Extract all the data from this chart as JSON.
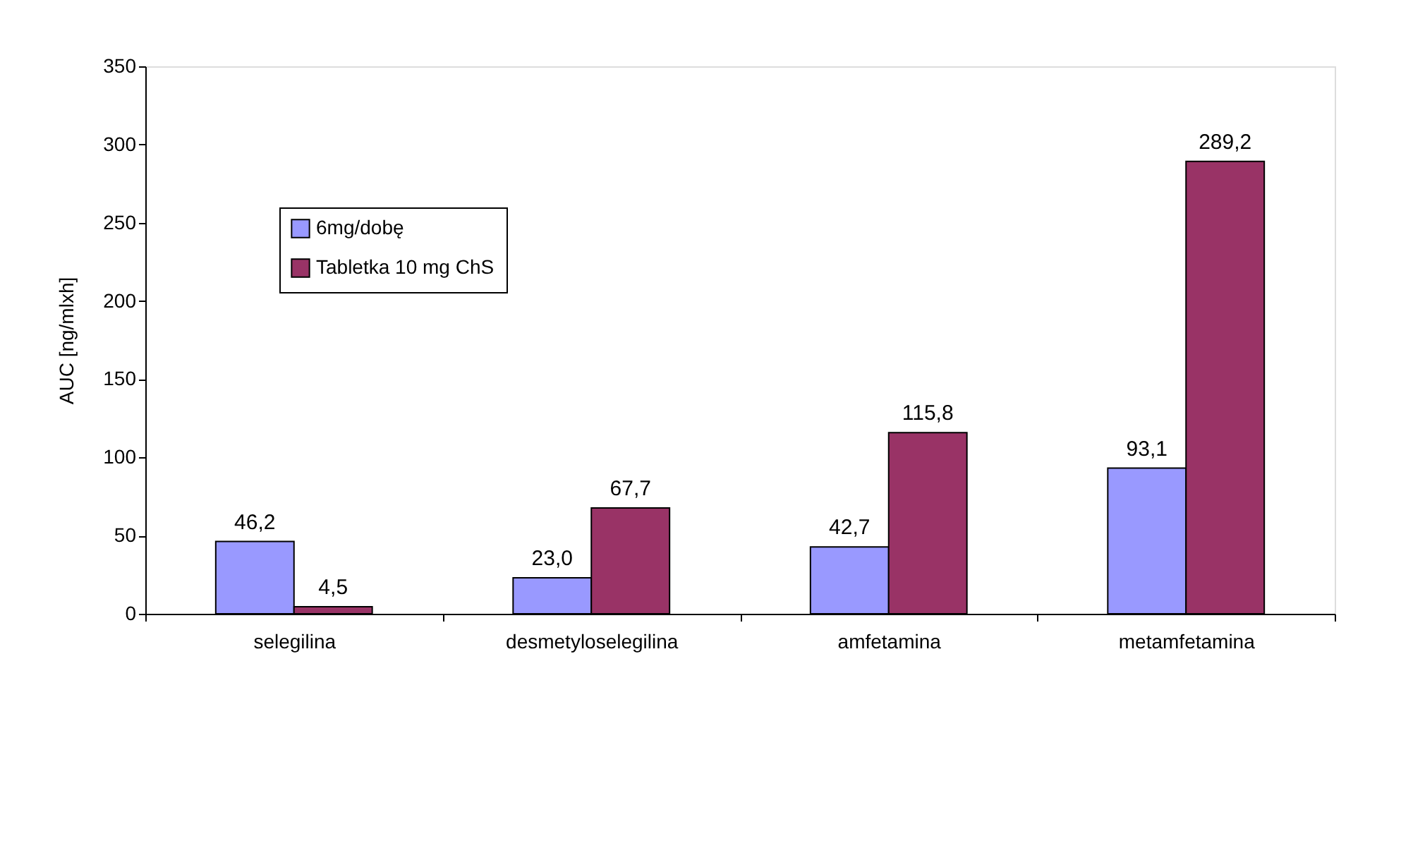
{
  "chart_data": {
    "type": "bar",
    "ylabel": "AUC [ng/mlxh]",
    "categories": [
      "selegilina",
      "desmetyloselegilina",
      "amfetamina",
      "metamfetamina"
    ],
    "series": [
      {
        "name": "6mg/dobę",
        "color": "#9999ff",
        "values": [
          46.2,
          23.0,
          42.7,
          93.1
        ],
        "value_labels": [
          "46,2",
          "23,0",
          "42,7",
          "93,1"
        ]
      },
      {
        "name": "Tabletka 10 mg ChS",
        "color": "#993366",
        "values": [
          4.5,
          67.7,
          115.8,
          289.2
        ],
        "value_labels": [
          "4,5",
          "67,7",
          "115,8",
          "289,2"
        ]
      }
    ],
    "ylim": [
      0,
      350
    ],
    "yticks": [
      0,
      50,
      100,
      150,
      200,
      250,
      300,
      350
    ],
    "grid": false,
    "legend": "top left"
  }
}
